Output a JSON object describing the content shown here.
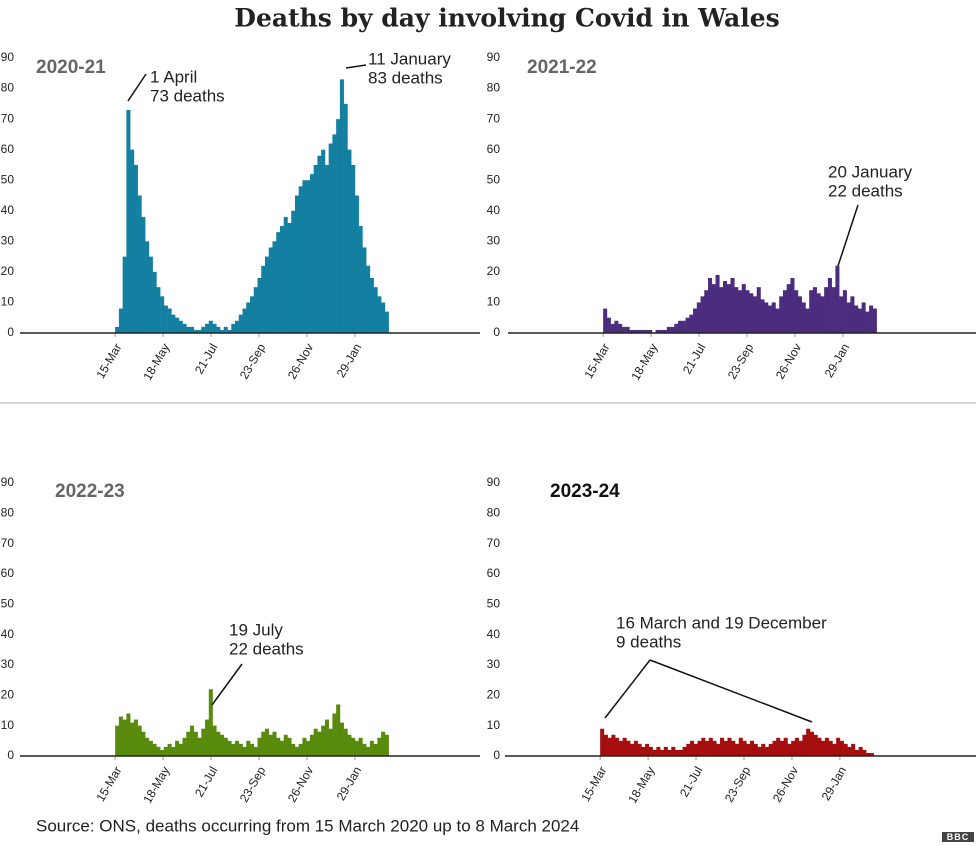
{
  "title": "Deaths by day involving Covid in Wales",
  "source": "Source: ONS, deaths occurring from 15 March 2020 up to 8 March 2024",
  "logo": "BBC",
  "chart_data": [
    {
      "type": "bar",
      "title": "2020-21",
      "color": "#1380a1",
      "annotations": [
        {
          "lines": [
            "1 April",
            "73 deaths"
          ]
        },
        {
          "lines": [
            "11 January",
            "83 deaths"
          ]
        }
      ],
      "x": [
        0,
        5,
        10,
        15,
        20,
        25,
        30,
        35,
        40,
        45,
        50,
        55,
        60,
        65,
        70,
        75,
        80,
        85,
        90,
        95,
        100,
        105,
        110,
        115,
        120,
        125,
        130,
        135,
        140,
        145,
        150,
        155,
        160,
        165,
        170,
        175,
        180,
        185,
        190,
        195,
        200,
        205,
        210,
        215,
        220,
        225,
        230,
        235,
        240,
        245,
        250,
        255,
        260,
        265,
        270,
        275,
        280,
        285,
        290,
        295,
        300,
        305,
        310,
        315,
        320,
        325,
        330,
        335,
        340,
        345,
        350,
        355,
        360
      ],
      "values": [
        2,
        8,
        25,
        73,
        60,
        55,
        45,
        38,
        30,
        25,
        20,
        15,
        12,
        9,
        8,
        6,
        5,
        4,
        3,
        2,
        2,
        1,
        1,
        2,
        3,
        4,
        3,
        2,
        1,
        2,
        1,
        3,
        4,
        6,
        8,
        10,
        12,
        15,
        18,
        22,
        25,
        28,
        30,
        33,
        35,
        38,
        36,
        40,
        45,
        48,
        50,
        50,
        52,
        55,
        58,
        60,
        55,
        62,
        65,
        70,
        83,
        75,
        60,
        55,
        45,
        35,
        28,
        22,
        18,
        15,
        12,
        10,
        7
      ],
      "xlim": [
        -127,
        487
      ],
      "ylim": [
        0,
        90
      ],
      "yticks": [
        0,
        10,
        20,
        30,
        40,
        50,
        60,
        70,
        80,
        90
      ],
      "xticks": [
        {
          "value": 0,
          "label": "15-Mar"
        },
        {
          "value": 64,
          "label": "18-May"
        },
        {
          "value": 128,
          "label": "21-Jul"
        },
        {
          "value": 192,
          "label": "23-Sep"
        },
        {
          "value": 256,
          "label": "26-Nov"
        },
        {
          "value": 320,
          "label": "29-Jan"
        }
      ]
    },
    {
      "type": "bar",
      "title": "2021-22",
      "color": "#4b2c7f",
      "annotations": [
        {
          "lines": [
            "20 January",
            "22 deaths"
          ]
        }
      ],
      "x": [
        0,
        5,
        10,
        15,
        20,
        25,
        30,
        35,
        40,
        45,
        50,
        55,
        60,
        65,
        70,
        75,
        80,
        85,
        90,
        95,
        100,
        105,
        110,
        115,
        120,
        125,
        130,
        135,
        140,
        145,
        150,
        155,
        160,
        165,
        170,
        175,
        180,
        185,
        190,
        195,
        200,
        205,
        210,
        215,
        220,
        225,
        230,
        235,
        240,
        245,
        250,
        255,
        260,
        265,
        270,
        275,
        280,
        285,
        290,
        295,
        300,
        305,
        310,
        315,
        320,
        325,
        330,
        335,
        340,
        345,
        350,
        355,
        360
      ],
      "values": [
        8,
        5,
        3,
        4,
        3,
        2,
        2,
        1,
        1,
        1,
        1,
        1,
        1,
        0,
        1,
        1,
        1,
        2,
        2,
        3,
        4,
        4,
        5,
        6,
        8,
        10,
        12,
        14,
        18,
        16,
        19,
        15,
        17,
        16,
        18,
        15,
        14,
        16,
        14,
        13,
        12,
        15,
        11,
        10,
        9,
        10,
        8,
        12,
        14,
        16,
        18,
        14,
        12,
        10,
        8,
        14,
        15,
        13,
        12,
        15,
        18,
        15,
        22,
        12,
        14,
        10,
        12,
        9,
        8,
        10,
        7,
        9,
        8
      ],
      "xlim": [
        -127,
        487
      ],
      "ylim": [
        0,
        90
      ],
      "yticks": [
        0,
        10,
        20,
        30,
        40,
        50,
        60,
        70,
        80,
        90
      ],
      "xticks": [
        {
          "value": 0,
          "label": "15-Mar"
        },
        {
          "value": 64,
          "label": "18-May"
        },
        {
          "value": 128,
          "label": "21-Jul"
        },
        {
          "value": 192,
          "label": "23-Sep"
        },
        {
          "value": 256,
          "label": "26-Nov"
        },
        {
          "value": 320,
          "label": "29-Jan"
        }
      ]
    },
    {
      "type": "bar",
      "title": "2022-23",
      "color": "#588a0c",
      "annotations": [
        {
          "lines": [
            "19 July",
            "22 deaths"
          ]
        }
      ],
      "x": [
        0,
        5,
        10,
        15,
        20,
        25,
        30,
        35,
        40,
        45,
        50,
        55,
        60,
        65,
        70,
        75,
        80,
        85,
        90,
        95,
        100,
        105,
        110,
        115,
        120,
        125,
        130,
        135,
        140,
        145,
        150,
        155,
        160,
        165,
        170,
        175,
        180,
        185,
        190,
        195,
        200,
        205,
        210,
        215,
        220,
        225,
        230,
        235,
        240,
        245,
        250,
        255,
        260,
        265,
        270,
        275,
        280,
        285,
        290,
        295,
        300,
        305,
        310,
        315,
        320,
        325,
        330,
        335,
        340,
        345,
        350,
        355,
        360
      ],
      "values": [
        10,
        13,
        12,
        14,
        11,
        12,
        10,
        8,
        6,
        5,
        4,
        3,
        2,
        3,
        4,
        3,
        5,
        4,
        6,
        8,
        10,
        8,
        6,
        9,
        12,
        22,
        10,
        8,
        7,
        6,
        5,
        4,
        5,
        4,
        3,
        5,
        4,
        3,
        6,
        8,
        9,
        7,
        8,
        6,
        5,
        7,
        6,
        4,
        3,
        4,
        6,
        5,
        7,
        9,
        8,
        10,
        12,
        9,
        14,
        17,
        11,
        9,
        7,
        6,
        5,
        6,
        4,
        3,
        5,
        4,
        6,
        8,
        7
      ],
      "xlim": [
        -127,
        487
      ],
      "ylim": [
        0,
        90
      ],
      "yticks": [
        0,
        10,
        20,
        30,
        40,
        50,
        60,
        70,
        80,
        90
      ],
      "xticks": [
        {
          "value": 0,
          "label": "15-Mar"
        },
        {
          "value": 64,
          "label": "18-May"
        },
        {
          "value": 128,
          "label": "21-Jul"
        },
        {
          "value": 192,
          "label": "23-Sep"
        },
        {
          "value": 256,
          "label": "26-Nov"
        },
        {
          "value": 320,
          "label": "29-Jan"
        }
      ]
    },
    {
      "type": "bar",
      "title": "2023-24",
      "color": "#a40e0e",
      "annotations": [
        {
          "lines": [
            "16 March and 19 December",
            "9 deaths"
          ]
        }
      ],
      "x": [
        0,
        5,
        10,
        15,
        20,
        25,
        30,
        35,
        40,
        45,
        50,
        55,
        60,
        65,
        70,
        75,
        80,
        85,
        90,
        95,
        100,
        105,
        110,
        115,
        120,
        125,
        130,
        135,
        140,
        145,
        150,
        155,
        160,
        165,
        170,
        175,
        180,
        185,
        190,
        195,
        200,
        205,
        210,
        215,
        220,
        225,
        230,
        235,
        240,
        245,
        250,
        255,
        260,
        265,
        270,
        275,
        280,
        285,
        290,
        295,
        300,
        305,
        310,
        315,
        320,
        325,
        330,
        335,
        340,
        345,
        350,
        355,
        360
      ],
      "values": [
        9,
        7,
        6,
        7,
        6,
        5,
        6,
        5,
        4,
        5,
        4,
        3,
        4,
        3,
        2,
        3,
        2,
        3,
        2,
        3,
        2,
        2,
        3,
        4,
        5,
        4,
        5,
        6,
        5,
        6,
        5,
        4,
        6,
        5,
        6,
        5,
        4,
        6,
        5,
        4,
        5,
        4,
        3,
        4,
        3,
        4,
        5,
        6,
        5,
        6,
        4,
        5,
        6,
        5,
        7,
        9,
        8,
        7,
        6,
        5,
        6,
        5,
        4,
        6,
        5,
        4,
        3,
        4,
        2,
        3,
        2,
        1,
        1
      ],
      "xlim": [
        -127,
        487
      ],
      "ylim": [
        0,
        90
      ],
      "yticks": [
        0,
        10,
        20,
        30,
        40,
        50,
        60,
        70,
        80,
        90
      ],
      "xticks": [
        {
          "value": 0,
          "label": "15-Mar"
        },
        {
          "value": 64,
          "label": "18-May"
        },
        {
          "value": 128,
          "label": "21-Jul"
        },
        {
          "value": 192,
          "label": "23-Sep"
        },
        {
          "value": 256,
          "label": "26-Nov"
        },
        {
          "value": 320,
          "label": "29-Jan"
        }
      ]
    }
  ]
}
